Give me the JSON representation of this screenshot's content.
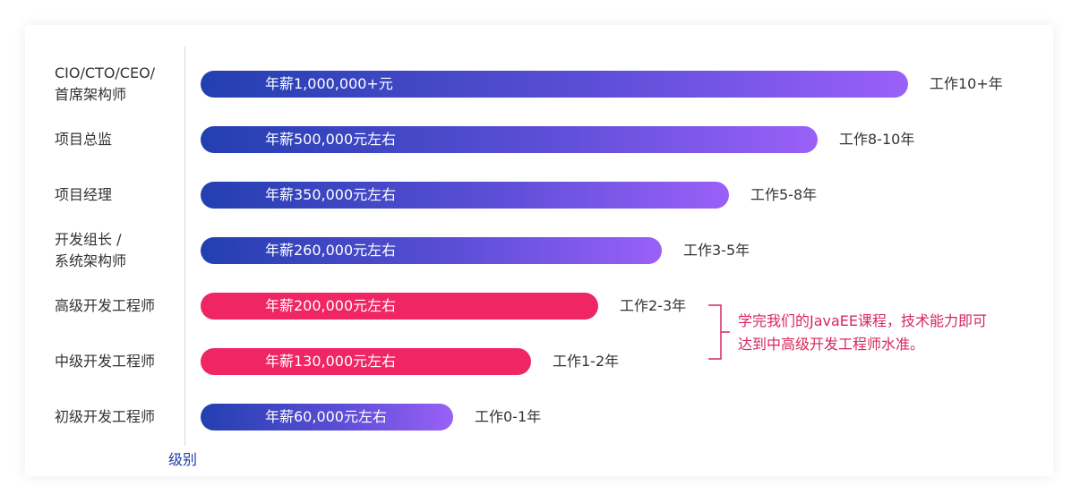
{
  "chart_data": {
    "type": "bar",
    "orientation": "horizontal",
    "axis_title": "级别",
    "categories": [
      [
        "CIO/CTO/CEO/",
        "首席架构师"
      ],
      [
        "项目总监"
      ],
      [
        "项目经理"
      ],
      [
        "开发组长 /",
        "系统架构师"
      ],
      [
        "高级开发工程师"
      ],
      [
        "中级开发工程师"
      ],
      [
        "初级开发工程师"
      ]
    ],
    "bar_labels": [
      "年薪1,000,000+元",
      "年薪500,000元左右",
      "年薪350,000元左右",
      "年薪260,000元左右",
      "年薪200,000元左右",
      "年薪130,000元左右",
      "年薪60,000元左右"
    ],
    "values": [
      1000000,
      500000,
      350000,
      260000,
      200000,
      130000,
      60000
    ],
    "experience": [
      "工作10+年",
      "工作8-10年",
      "工作5-8年",
      "工作3-5年",
      "工作2-3年",
      "工作1-2年",
      "工作0-1年"
    ],
    "highlighted": [
      false,
      false,
      false,
      false,
      true,
      true,
      false
    ],
    "colors": {
      "default_start": "#233fb0",
      "default_end": "#9a60f7",
      "highlight": "#ef2564",
      "note": "#d8275d"
    },
    "annotation": [
      "学完我们的JavaEE课程，技术能力即可",
      "达到中高级开发工程师水准。"
    ]
  }
}
